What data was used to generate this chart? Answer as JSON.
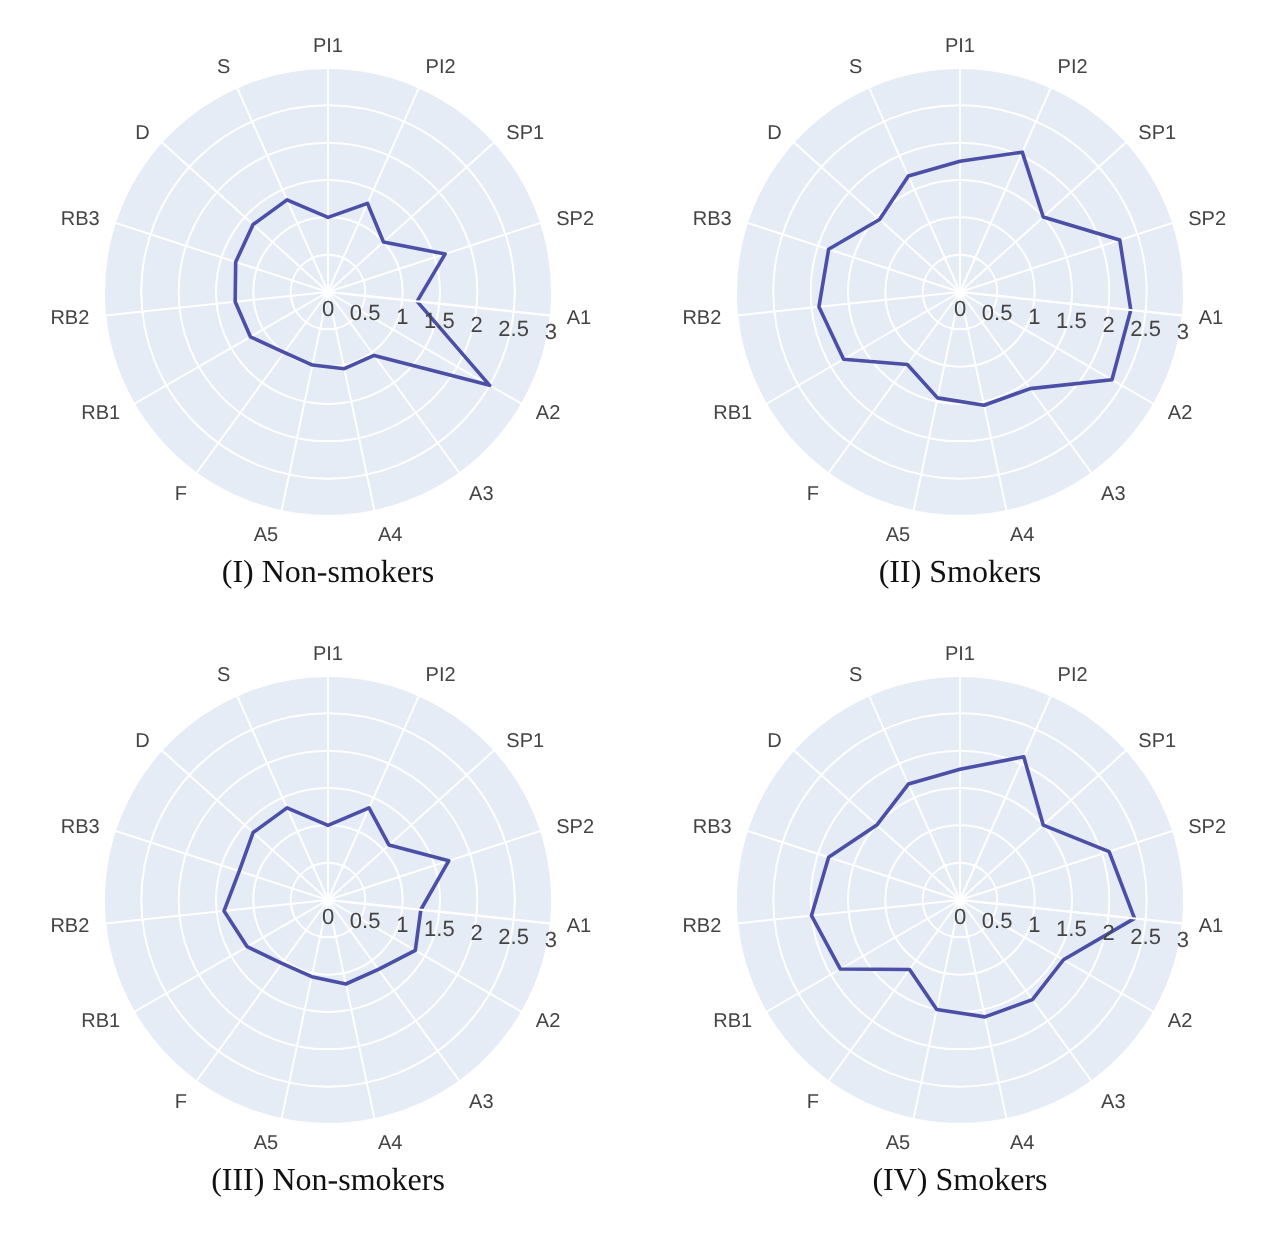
{
  "chart_data": [
    {
      "type": "radar",
      "title": "(I) Non-smokers",
      "categories": [
        "PI1",
        "PI2",
        "SP1",
        "SP2",
        "A1",
        "A2",
        "A3",
        "A4",
        "A5",
        "F",
        "RB1",
        "RB2",
        "RB3",
        "D",
        "S"
      ],
      "ylim": [
        0,
        3
      ],
      "yticks": [
        0,
        0.5,
        1,
        1.5,
        2,
        2.5,
        3
      ],
      "grid": true,
      "series": [
        {
          "color": "#4b4fa6",
          "values": [
            1.0,
            1.3,
            1.0,
            1.65,
            1.2,
            2.5,
            1.05,
            1.05,
            1.0,
            1.0,
            1.2,
            1.25,
            1.3,
            1.35,
            1.35
          ]
        }
      ]
    },
    {
      "type": "radar",
      "title": "(II) Smokers",
      "categories": [
        "PI1",
        "PI2",
        "SP1",
        "SP2",
        "A1",
        "A2",
        "A3",
        "A4",
        "A5",
        "F",
        "RB1",
        "RB2",
        "RB3",
        "D",
        "S"
      ],
      "ylim": [
        0,
        3
      ],
      "yticks": [
        0,
        0.5,
        1,
        1.5,
        2,
        2.5,
        3
      ],
      "grid": true,
      "series": [
        {
          "color": "#4b4fa6",
          "values": [
            1.75,
            2.05,
            1.5,
            2.25,
            2.3,
            2.35,
            1.6,
            1.55,
            1.45,
            1.2,
            1.8,
            1.9,
            1.85,
            1.45,
            1.7
          ]
        }
      ]
    },
    {
      "type": "radar",
      "title": "(III) Non-smokers",
      "categories": [
        "PI1",
        "PI2",
        "SP1",
        "SP2",
        "A1",
        "A2",
        "A3",
        "A4",
        "A5",
        "F",
        "RB1",
        "RB2",
        "RB3",
        "D",
        "S"
      ],
      "ylim": [
        0,
        3
      ],
      "yticks": [
        0,
        0.5,
        1,
        1.5,
        2,
        2.5,
        3
      ],
      "grid": true,
      "series": [
        {
          "color": "#4b4fa6",
          "values": [
            1.0,
            1.35,
            1.1,
            1.7,
            1.25,
            1.35,
            1.15,
            1.15,
            1.05,
            1.05,
            1.25,
            1.4,
            1.25,
            1.35,
            1.35
          ]
        }
      ]
    },
    {
      "type": "radar",
      "title": "(IV) Smokers",
      "categories": [
        "PI1",
        "PI2",
        "SP1",
        "SP2",
        "A1",
        "A2",
        "A3",
        "A4",
        "A5",
        "F",
        "RB1",
        "RB2",
        "RB3",
        "D",
        "S"
      ],
      "ylim": [
        0,
        3
      ],
      "yticks": [
        0,
        0.5,
        1,
        1.5,
        2,
        2.5,
        3
      ],
      "grid": true,
      "series": [
        {
          "color": "#4b4fa6",
          "values": [
            1.75,
            2.1,
            1.5,
            2.1,
            2.35,
            1.6,
            1.65,
            1.6,
            1.5,
            1.15,
            1.85,
            2.0,
            1.85,
            1.5,
            1.7
          ]
        }
      ]
    }
  ]
}
